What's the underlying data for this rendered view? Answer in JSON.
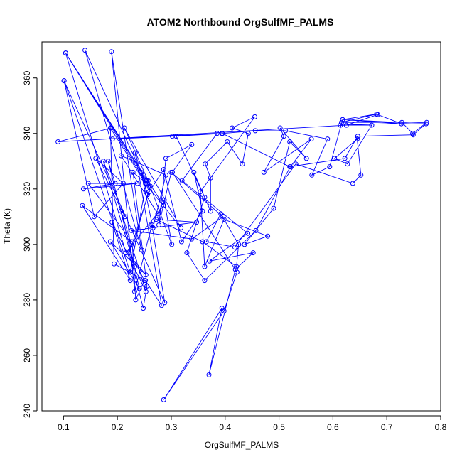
{
  "chart_data": {
    "type": "line",
    "title": "ATOM2 Northbound OrgSulfMF_PALMS",
    "xlabel": "OrgSulfMF_PALMS",
    "ylabel": "Theta (K)",
    "xlim": [
      0.06,
      0.8
    ],
    "ylim": [
      240,
      373
    ],
    "x_ticks": [
      0.1,
      0.2,
      0.3,
      0.4,
      0.5,
      0.6,
      0.7,
      0.8
    ],
    "y_ticks": [
      240,
      260,
      280,
      300,
      320,
      340,
      360
    ],
    "grid": false,
    "legend": "none",
    "markers": "open circles connected by lines",
    "series_color": "#0000ff",
    "series": [
      {
        "points": [
          [
            0.101,
            359.0
          ],
          [
            0.224,
            290.0
          ],
          [
            0.254,
            323.0
          ],
          [
            0.104,
            369.0
          ],
          [
            0.216,
            297.0
          ],
          [
            0.286,
            314.0
          ],
          [
            0.104,
            369.0
          ],
          [
            0.254,
            322.0
          ],
          [
            0.14,
            370.0
          ],
          [
            0.245,
            298.0
          ],
          [
            0.189,
            369.5
          ],
          [
            0.232,
            283.0
          ],
          [
            0.264,
            307.0
          ],
          [
            0.288,
            279.0
          ],
          [
            0.101,
            359.0
          ],
          [
            0.157,
            310.0
          ],
          [
            0.211,
            322.0
          ],
          [
            0.16,
            331.0
          ],
          [
            0.214,
            310.0
          ],
          [
            0.174,
            330.0
          ],
          [
            0.232,
            292.0
          ],
          [
            0.183,
            330.0
          ],
          [
            0.196,
            322.0
          ],
          [
            0.137,
            320.0
          ],
          [
            0.237,
            322.0
          ],
          [
            0.146,
            322.0
          ],
          [
            0.227,
            301.0
          ],
          [
            0.135,
            314.0
          ],
          [
            0.224,
            287.0
          ],
          [
            0.19,
            308.0
          ],
          [
            0.253,
            283.0
          ],
          [
            0.207,
            312.0
          ],
          [
            0.241,
            284.0
          ],
          [
            0.187,
            301.0
          ],
          [
            0.253,
            289.0
          ],
          [
            0.232,
            294.0
          ],
          [
            0.25,
            287.0
          ],
          [
            0.234,
            280.0
          ],
          [
            0.228,
            299.0
          ],
          [
            0.261,
            321.0
          ],
          [
            0.229,
            326.0
          ],
          [
            0.255,
            285.0
          ],
          [
            0.248,
            277.0
          ],
          [
            0.222,
            297.0
          ],
          [
            0.259,
            319.0
          ],
          [
            0.244,
            326.0
          ],
          [
            0.266,
            306.0
          ],
          [
            0.29,
            325.0
          ],
          [
            0.207,
            332.0
          ],
          [
            0.275,
            311.0
          ],
          [
            0.287,
            316.0
          ],
          [
            0.301,
            300.0
          ],
          [
            0.257,
            323.0
          ],
          [
            0.213,
            342.0
          ],
          [
            0.318,
            306.0
          ],
          [
            0.252,
            322.0
          ],
          [
            0.187,
            342.0
          ],
          [
            0.194,
            293.0
          ],
          [
            0.252,
            287.0
          ],
          [
            0.282,
            278.0
          ],
          [
            0.233,
            333.0
          ],
          [
            0.256,
            318.0
          ],
          [
            0.286,
            327.0
          ],
          [
            0.319,
            301.0
          ],
          [
            0.358,
            312.0
          ],
          [
            0.342,
            326.0
          ],
          [
            0.373,
            312.0
          ],
          [
            0.373,
            324.0
          ],
          [
            0.363,
            329.0
          ],
          [
            0.404,
            337.0
          ],
          [
            0.432,
            329.0
          ],
          [
            0.443,
            340.0
          ],
          [
            0.413,
            342.0
          ],
          [
            0.455,
            346.0
          ],
          [
            0.354,
            319.0
          ],
          [
            0.362,
            292.0
          ],
          [
            0.398,
            309.0
          ],
          [
            0.479,
            303.0
          ],
          [
            0.436,
            300.0
          ],
          [
            0.49,
            313.0
          ],
          [
            0.52,
            337.0
          ],
          [
            0.551,
            331.0
          ],
          [
            0.502,
            342.0
          ],
          [
            0.509,
            339.0
          ],
          [
            0.472,
            326.0
          ],
          [
            0.56,
            338.0
          ],
          [
            0.521,
            328.0
          ],
          [
            0.457,
            305.0
          ],
          [
            0.362,
            287.0
          ],
          [
            0.329,
            297.0
          ],
          [
            0.362,
            317.0
          ],
          [
            0.309,
            339.0
          ],
          [
            0.394,
            340.0
          ],
          [
            0.456,
            341.0
          ],
          [
            0.512,
            341.0
          ],
          [
            0.59,
            338.0
          ],
          [
            0.561,
            325.0
          ],
          [
            0.594,
            328.0
          ],
          [
            0.618,
            345.0
          ],
          [
            0.681,
            347.0
          ],
          [
            0.616,
            344.0
          ],
          [
            0.728,
            344.0
          ],
          [
            0.748,
            340.0
          ],
          [
            0.774,
            344.0
          ],
          [
            0.614,
            343.0
          ],
          [
            0.672,
            343.0
          ],
          [
            0.627,
            329.0
          ],
          [
            0.603,
            331.0
          ],
          [
            0.645,
            338.0
          ],
          [
            0.652,
            325.0
          ],
          [
            0.637,
            322.0
          ],
          [
            0.531,
            329.0
          ],
          [
            0.418,
            299.0
          ],
          [
            0.365,
            301.0
          ],
          [
            0.392,
            311.0
          ],
          [
            0.425,
            300.0
          ],
          [
            0.421,
            292.0
          ],
          [
            0.358,
            301.0
          ],
          [
            0.272,
            309.0
          ],
          [
            0.347,
            308.0
          ],
          [
            0.226,
            305.0
          ],
          [
            0.338,
            302.0
          ],
          [
            0.396,
            310.0
          ],
          [
            0.3,
            326.0
          ],
          [
            0.277,
            307.0
          ],
          [
            0.29,
            331.0
          ],
          [
            0.338,
            336.0
          ],
          [
            0.302,
            326.0
          ],
          [
            0.422,
            290.0
          ],
          [
            0.398,
            276.0
          ],
          [
            0.286,
            244.0
          ],
          [
            0.394,
            277.0
          ],
          [
            0.37,
            253.0
          ],
          [
            0.419,
            291.0
          ],
          [
            0.452,
            297.0
          ],
          [
            0.371,
            294.0
          ],
          [
            0.442,
            304.0
          ],
          [
            0.32,
            323.0
          ],
          [
            0.385,
            340.0
          ],
          [
            0.191,
            338.0
          ],
          [
            0.302,
            339.0
          ],
          [
            0.395,
            340.0
          ],
          [
            0.52,
            328.0
          ],
          [
            0.622,
            331.0
          ],
          [
            0.646,
            339.0
          ],
          [
            0.749,
            339.5
          ],
          [
            0.773,
            343.5
          ],
          [
            0.618,
            345.0
          ],
          [
            0.727,
            343.5
          ],
          [
            0.683,
            346.8
          ],
          [
            0.625,
            343.0
          ],
          [
            0.09,
            337.0
          ],
          [
            0.189,
            342.0
          ]
        ]
      }
    ]
  }
}
